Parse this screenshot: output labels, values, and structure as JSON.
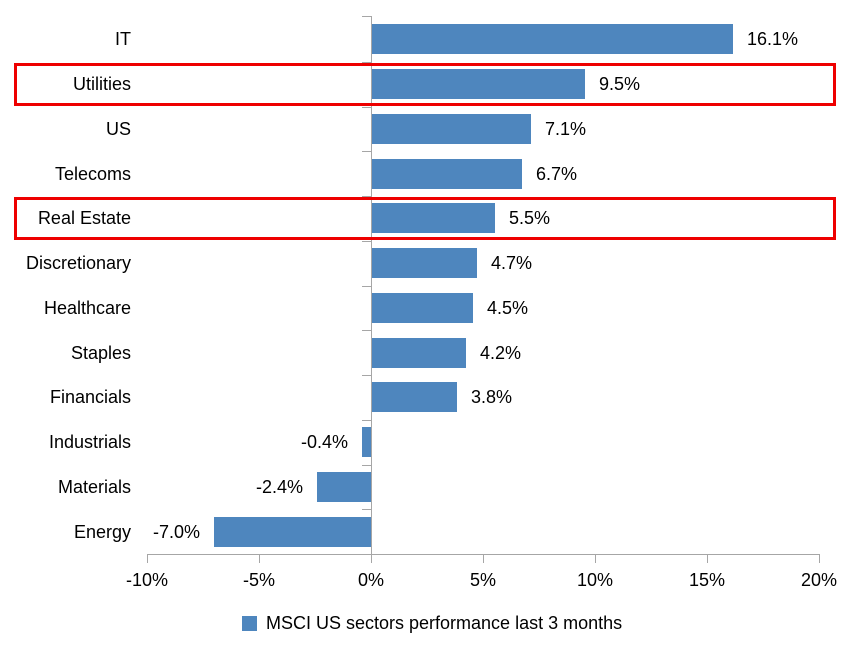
{
  "chart_data": {
    "type": "bar",
    "orientation": "horizontal",
    "categories": [
      "IT",
      "Utilities",
      "US",
      "Telecoms",
      "Real Estate",
      "Discretionary",
      "Healthcare",
      "Staples",
      "Financials",
      "Industrials",
      "Materials",
      "Energy"
    ],
    "values": [
      16.1,
      9.5,
      7.1,
      6.7,
      5.5,
      4.7,
      4.5,
      4.2,
      3.8,
      -0.4,
      -2.4,
      -7.0
    ],
    "data_labels": [
      "16.1%",
      "9.5%",
      "7.1%",
      "6.7%",
      "5.5%",
      "4.7%",
      "4.5%",
      "4.2%",
      "3.8%",
      "-0.4%",
      "-2.4%",
      "-7.0%"
    ],
    "x_tick_labels": [
      "-10%",
      "-5%",
      "0%",
      "5%",
      "10%",
      "15%",
      "20%"
    ],
    "x_tick_values": [
      -10,
      -5,
      0,
      5,
      10,
      15,
      20
    ],
    "xlim": [
      -10,
      20
    ],
    "grid": false,
    "legend": {
      "label": "MSCI US sectors performance last 3 months",
      "position": "bottom"
    },
    "highlighted_categories": [
      "Utilities",
      "Real Estate"
    ],
    "colors": {
      "bar": "#4E86BE",
      "highlight_box": "#EE0000",
      "axis": "#A6A6A6",
      "text": "#000000",
      "background": "#FFFFFF"
    }
  }
}
